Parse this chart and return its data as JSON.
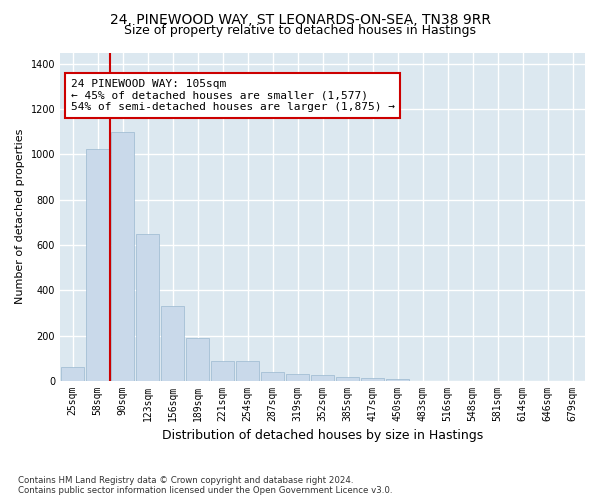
{
  "title_line1": "24, PINEWOOD WAY, ST LEONARDS-ON-SEA, TN38 9RR",
  "title_line2": "Size of property relative to detached houses in Hastings",
  "xlabel": "Distribution of detached houses by size in Hastings",
  "ylabel": "Number of detached properties",
  "footnote": "Contains HM Land Registry data © Crown copyright and database right 2024.\nContains public sector information licensed under the Open Government Licence v3.0.",
  "bar_values": [
    60,
    1025,
    1100,
    650,
    330,
    190,
    90,
    90,
    40,
    30,
    25,
    20,
    15,
    10,
    0,
    0,
    0,
    0,
    0,
    0,
    0
  ],
  "categories": [
    "25sqm",
    "58sqm",
    "90sqm",
    "123sqm",
    "156sqm",
    "189sqm",
    "221sqm",
    "254sqm",
    "287sqm",
    "319sqm",
    "352sqm",
    "385sqm",
    "417sqm",
    "450sqm",
    "483sqm",
    "516sqm",
    "548sqm",
    "581sqm",
    "614sqm",
    "646sqm",
    "679sqm"
  ],
  "bar_color": "#c9d9ea",
  "bar_edge_color": "#9ab8d0",
  "property_line_color": "#cc0000",
  "annotation_text": "24 PINEWOOD WAY: 105sqm\n← 45% of detached houses are smaller (1,577)\n54% of semi-detached houses are larger (1,875) →",
  "annotation_box_color": "#ffffff",
  "annotation_box_edge_color": "#cc0000",
  "ylim": [
    0,
    1450
  ],
  "yticks": [
    0,
    200,
    400,
    600,
    800,
    1000,
    1200,
    1400
  ],
  "fig_bg_color": "#ffffff",
  "plot_bg_color": "#dce8f0",
  "grid_color": "#ffffff",
  "title_fontsize": 10,
  "subtitle_fontsize": 9,
  "tick_fontsize": 7,
  "annotation_fontsize": 8,
  "ylabel_fontsize": 8,
  "xlabel_fontsize": 9
}
